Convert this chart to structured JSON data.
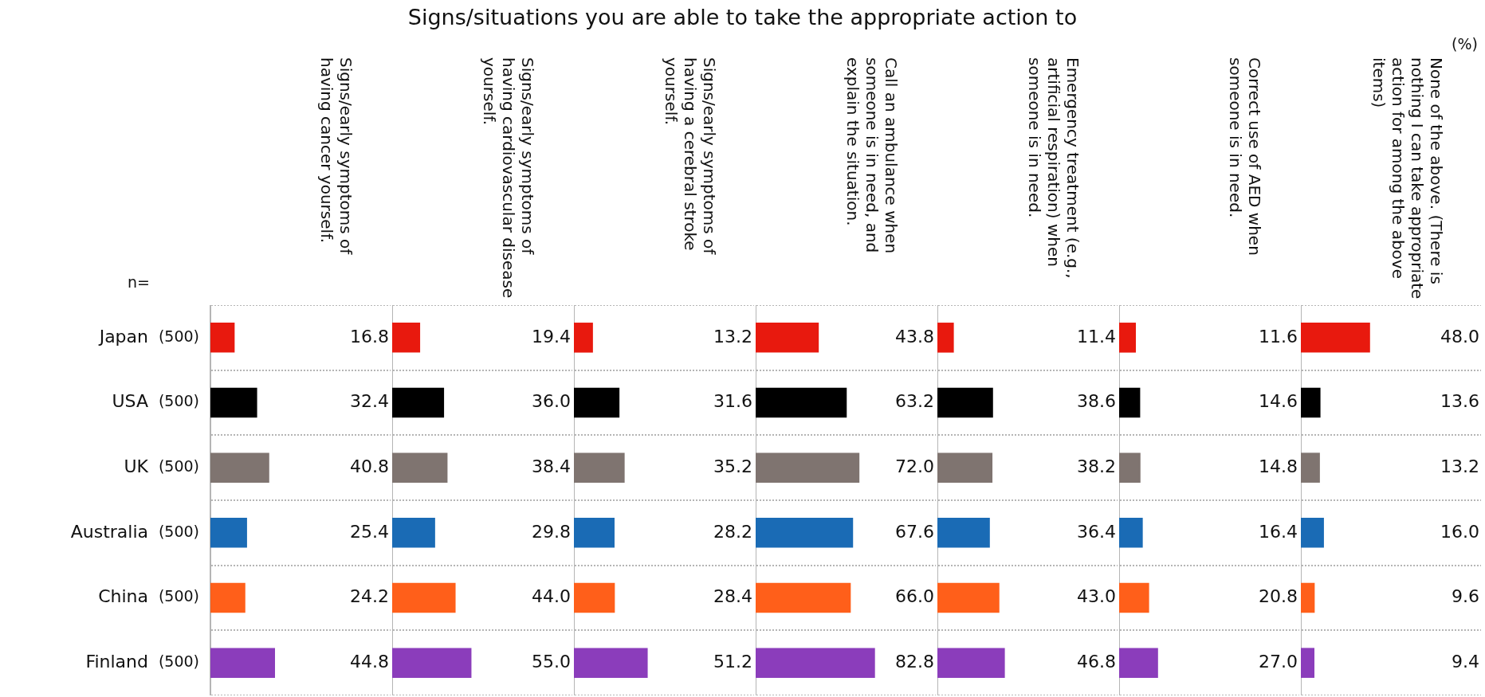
{
  "chart_data": [
    {
      "type": "bar",
      "orientation": "horizontal",
      "subtitle": "Signs/early symptoms of having cancer yourself.",
      "categories": [
        "Japan",
        "USA",
        "UK",
        "Australia",
        "China",
        "Finland"
      ],
      "values": [
        16.8,
        32.4,
        40.8,
        25.4,
        24.2,
        44.8
      ],
      "value_labels": [
        "16.8",
        "32.4",
        "40.8",
        "25.4",
        "24.2",
        "44.8"
      ],
      "colors": [
        "#e8190e",
        "#000000",
        "#7f7470",
        "#1a6bb5",
        "#ff5f1a",
        "#8b3dbb"
      ],
      "xlim": [
        0,
        125
      ],
      "grid": "y",
      "tick_labels": "y",
      "annotations": [
        "n=",
        "(500)",
        "(500)",
        "(500)",
        "(500)",
        "(500)",
        "(500)"
      ]
    },
    {
      "type": "bar",
      "orientation": "horizontal",
      "subtitle": "Signs/early symptoms of having cardiovascular disease yourself.",
      "categories": [
        null,
        null,
        null,
        null,
        null,
        null
      ],
      "values": [
        19.4,
        36.0,
        38.4,
        29.8,
        44.0,
        55.0
      ],
      "value_labels": [
        "19.4",
        "36.0",
        "38.4",
        "29.8",
        "44.0",
        "55.0"
      ],
      "colors": [
        "#e8190e",
        "#000000",
        "#7f7470",
        "#1a6bb5",
        "#ff5f1a",
        "#8b3dbb"
      ],
      "xlim": [
        0,
        125
      ],
      "grid": "y",
      "tick_labels": false
    },
    {
      "type": "bar",
      "orientation": "horizontal",
      "title": "Signs/situations you are able to take the appropriate action to",
      "subtitle": "Signs/early symptoms of having a cerebral stroke yourself.",
      "categories": [
        null,
        null,
        null,
        null,
        null,
        null
      ],
      "values": [
        13.2,
        31.6,
        35.2,
        28.2,
        28.4,
        51.2
      ],
      "value_labels": [
        "13.2",
        "31.6",
        "35.2",
        "28.2",
        "28.4",
        "51.2"
      ],
      "colors": [
        "#e8190e",
        "#000000",
        "#7f7470",
        "#1a6bb5",
        "#ff5f1a",
        "#8b3dbb"
      ],
      "xlim": [
        0,
        125
      ],
      "grid": "y",
      "tick_labels": false
    },
    {
      "type": "bar",
      "orientation": "horizontal",
      "subtitle": "Call an ambulance when someone is in need, and explain the situation.",
      "categories": [
        null,
        null,
        null,
        null,
        null,
        null
      ],
      "values": [
        43.8,
        63.2,
        72.0,
        67.6,
        66.0,
        82.8
      ],
      "value_labels": [
        "43.8",
        "63.2",
        "72.0",
        "67.6",
        "66.0",
        "82.8"
      ],
      "colors": [
        "#e8190e",
        "#000000",
        "#7f7470",
        "#1a6bb5",
        "#ff5f1a",
        "#8b3dbb"
      ],
      "xlim": [
        0,
        125
      ],
      "grid": "y",
      "tick_labels": false
    },
    {
      "type": "bar",
      "orientation": "horizontal",
      "subtitle": "Emergency treatment (e.g., artificial respiration) when someone is in need.",
      "categories": [
        null,
        null,
        null,
        null,
        null,
        null
      ],
      "values": [
        11.4,
        38.6,
        38.2,
        36.4,
        43.0,
        46.8
      ],
      "value_labels": [
        "11.4",
        "38.6",
        "38.2",
        "36.4",
        "43.0",
        "46.8"
      ],
      "colors": [
        "#e8190e",
        "#000000",
        "#7f7470",
        "#1a6bb5",
        "#ff5f1a",
        "#8b3dbb"
      ],
      "xlim": [
        0,
        125
      ],
      "grid": "y",
      "tick_labels": false
    },
    {
      "type": "bar",
      "orientation": "horizontal",
      "subtitle": "Correct use of AED when someone is in need.",
      "categories": [
        null,
        null,
        null,
        null,
        null,
        null
      ],
      "values": [
        11.6,
        14.6,
        14.8,
        16.4,
        20.8,
        27.0
      ],
      "value_labels": [
        "11.6",
        "14.6",
        "14.8",
        "16.4",
        "20.8",
        "27.0"
      ],
      "colors": [
        "#e8190e",
        "#000000",
        "#7f7470",
        "#1a6bb5",
        "#ff5f1a",
        "#8b3dbb"
      ],
      "xlim": [
        0,
        125
      ],
      "grid": "y",
      "tick_labels": false
    },
    {
      "type": "bar",
      "orientation": "horizontal",
      "subtitle": "None of the above. (There is nothing I can take appropriate action for among the above items)",
      "categories": [
        null,
        null,
        null,
        null,
        null,
        null
      ],
      "values": [
        48.0,
        13.6,
        13.2,
        16.0,
        9.6,
        9.4
      ],
      "value_labels": [
        "48.0",
        "13.6",
        "13.2",
        "16.0",
        "9.6",
        "9.4"
      ],
      "colors": [
        "#e8190e",
        "#000000",
        "#7f7470",
        "#1a6bb5",
        "#ff5f1a",
        "#8b3dbb"
      ],
      "xlim": [
        0,
        125
      ],
      "grid": "y",
      "tick_labels": false,
      "annotations": [
        "(%)"
      ]
    }
  ]
}
